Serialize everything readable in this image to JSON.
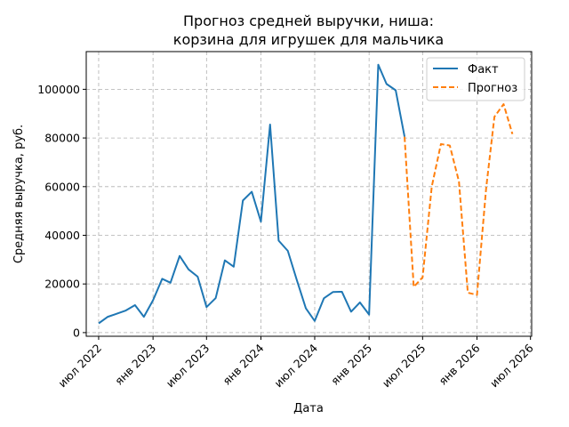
{
  "chart_data": {
    "type": "line",
    "title": [
      "Прогноз средней выручки, ниша:",
      "корзина для игрушек для мальчика"
    ],
    "xlabel": "Дата",
    "ylabel": "Средняя выручка, руб.",
    "xlim": [
      "2022-05-20",
      "2026-07-05"
    ],
    "ylim": [
      -1500,
      115500
    ],
    "grid": true,
    "legend_position": "top-right",
    "x_ticks": [
      {
        "date": "2022-07-01",
        "label": "июл 2022"
      },
      {
        "date": "2023-01-01",
        "label": "янв 2023"
      },
      {
        "date": "2023-07-01",
        "label": "июл 2023"
      },
      {
        "date": "2024-01-01",
        "label": "янв 2024"
      },
      {
        "date": "2024-07-01",
        "label": "июл 2024"
      },
      {
        "date": "2025-01-01",
        "label": "янв 2025"
      },
      {
        "date": "2025-07-01",
        "label": "июл 2025"
      },
      {
        "date": "2026-01-01",
        "label": "янв 2026"
      },
      {
        "date": "2026-07-01",
        "label": "июл 2026"
      }
    ],
    "y_ticks": [
      {
        "value": 0,
        "label": "0"
      },
      {
        "value": 20000,
        "label": "20000"
      },
      {
        "value": 40000,
        "label": "40000"
      },
      {
        "value": 60000,
        "label": "60000"
      },
      {
        "value": 80000,
        "label": "80000"
      },
      {
        "value": 100000,
        "label": "100000"
      }
    ],
    "series": [
      {
        "name": "Факт",
        "color": "#1f77b4",
        "style": "solid",
        "x": [
          "2022-07-01",
          "2022-08-01",
          "2022-09-01",
          "2022-10-01",
          "2022-11-01",
          "2022-12-01",
          "2023-01-01",
          "2023-02-01",
          "2023-03-01",
          "2023-04-01",
          "2023-05-01",
          "2023-06-01",
          "2023-07-01",
          "2023-08-01",
          "2023-09-01",
          "2023-10-01",
          "2023-11-01",
          "2023-12-01",
          "2024-01-01",
          "2024-02-01",
          "2024-03-01",
          "2024-04-01",
          "2024-05-01",
          "2024-06-01",
          "2024-07-01",
          "2024-08-01",
          "2024-09-01",
          "2024-10-01",
          "2024-11-01",
          "2024-12-01",
          "2025-01-01",
          "2025-02-01",
          "2025-03-01",
          "2025-04-01",
          "2025-05-01"
        ],
        "y": [
          3800,
          6500,
          7800,
          9100,
          11300,
          6500,
          13300,
          22100,
          20500,
          31500,
          26000,
          23000,
          10500,
          14200,
          29700,
          27100,
          54300,
          57900,
          45600,
          85500,
          37800,
          33600,
          21800,
          10000,
          4800,
          14100,
          16700,
          16800,
          8600,
          12400,
          7400,
          110100,
          102200,
          99600,
          80500
        ]
      },
      {
        "name": "Прогноз",
        "color": "#ff7f0e",
        "style": "dashed",
        "x": [
          "2025-05-01",
          "2025-06-01",
          "2025-07-01",
          "2025-08-01",
          "2025-09-01",
          "2025-10-01",
          "2025-11-01",
          "2025-12-01",
          "2026-01-01",
          "2026-02-01",
          "2026-03-01",
          "2026-04-01",
          "2026-05-01"
        ],
        "y": [
          80500,
          18800,
          22700,
          60000,
          77500,
          76900,
          62100,
          16400,
          15500,
          59300,
          88700,
          93900,
          81600
        ]
      }
    ]
  }
}
